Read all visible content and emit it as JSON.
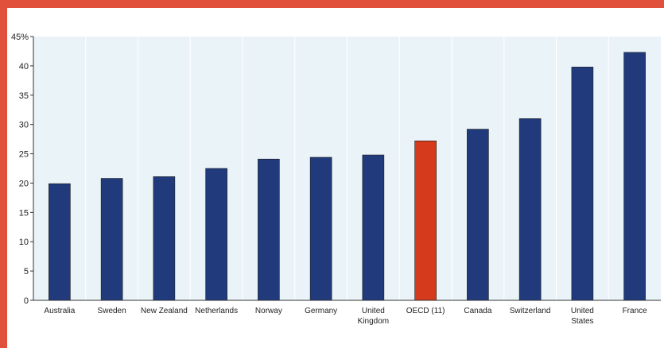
{
  "colors": {
    "frame": "#e0503a",
    "plot_background": "#eaf4f8",
    "gridline": "#ffffff",
    "bar": "#203a7c",
    "highlight_bar": "#d63a1c"
  },
  "chart_data": {
    "type": "bar",
    "categories": [
      "Australia",
      "Sweden",
      "New Zealand",
      "Netherlands",
      "Norway",
      "Germany",
      "United Kingdom",
      "OECD (11)",
      "Canada",
      "Switzerland",
      "United States",
      "France"
    ],
    "category_label_lines": [
      [
        "Australia"
      ],
      [
        "Sweden"
      ],
      [
        "New Zealand"
      ],
      [
        "Netherlands"
      ],
      [
        "Norway"
      ],
      [
        "Germany"
      ],
      [
        "United",
        "Kingdom"
      ],
      [
        "OECD (11)"
      ],
      [
        "Canada"
      ],
      [
        "Switzerland"
      ],
      [
        "United",
        "States"
      ],
      [
        "France"
      ]
    ],
    "values": [
      19.9,
      20.8,
      21.1,
      22.5,
      24.1,
      24.4,
      24.8,
      27.2,
      29.2,
      31.0,
      39.8,
      42.3
    ],
    "highlight_category": "OECD (11)",
    "ylim": [
      0,
      45
    ],
    "yticks": [
      0,
      5,
      10,
      15,
      20,
      25,
      30,
      35,
      40,
      45
    ],
    "ytick_labels": [
      "0",
      "5",
      "10",
      "15",
      "20",
      "25",
      "30",
      "35",
      "40",
      "45%"
    ],
    "grid": "vertical",
    "title": "",
    "xlabel": "",
    "ylabel": ""
  }
}
